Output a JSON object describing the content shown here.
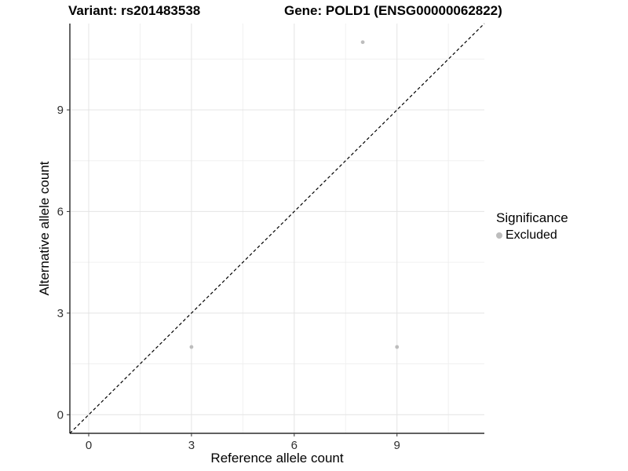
{
  "header": {
    "title_left": "Variant: rs201483538",
    "title_right": "Gene: POLD1 (ENSG00000062822)"
  },
  "chart_data": {
    "type": "scatter",
    "title_left": "Variant: rs201483538",
    "title_right": "Gene: POLD1 (ENSG00000062822)",
    "xlabel": "Reference allele count",
    "ylabel": "Alternative allele count",
    "xlim": [
      -0.55,
      11.55
    ],
    "ylim": [
      -0.55,
      11.55
    ],
    "x_ticks": [
      0,
      3,
      6,
      9
    ],
    "y_ticks": [
      0,
      3,
      6,
      9
    ],
    "x_minor_ticks": [
      1.5,
      4.5,
      7.5,
      10.5
    ],
    "y_minor_ticks": [
      1.5,
      4.5,
      7.5,
      10.5
    ],
    "grid": true,
    "identity_line": {
      "slope": 1,
      "intercept": 0,
      "style": "dashed",
      "color": "#000000"
    },
    "points": [
      {
        "x": 3,
        "y": 2,
        "significance": "Excluded"
      },
      {
        "x": 9,
        "y": 2,
        "significance": "Excluded"
      },
      {
        "x": 8,
        "y": 11,
        "significance": "Excluded"
      }
    ],
    "legend": {
      "title": "Significance",
      "position": "right",
      "items": [
        {
          "label": "Excluded",
          "color": "#bdbdbd"
        }
      ]
    },
    "colors": {
      "point": "#bdbdbd",
      "grid_major": "#e4e4e4",
      "grid_minor": "#f0f0f0",
      "axis_line": "#4a4a4a",
      "tick_mark": "#333333",
      "tick_label": "#303030"
    }
  }
}
